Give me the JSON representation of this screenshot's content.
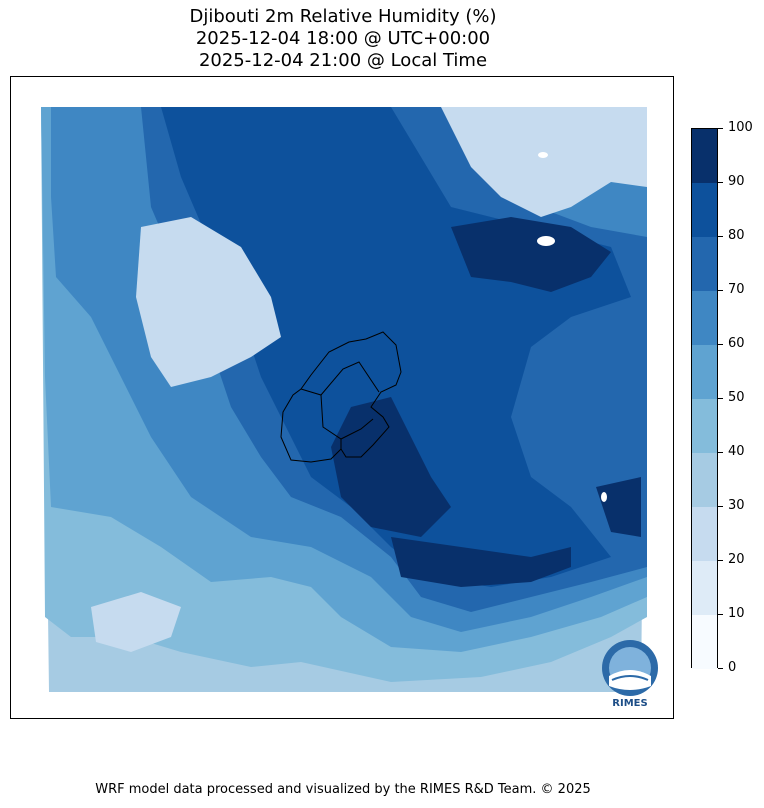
{
  "title": {
    "line1": "Djibouti 2m Relative Humidity (%)",
    "line2": "2025-12-04 18:00 @ UTC+00:00",
    "line3": "2025-12-04 21:00 @ Local Time"
  },
  "colorbar": {
    "ticks": [
      "0",
      "10",
      "20",
      "30",
      "40",
      "50",
      "60",
      "70",
      "80",
      "90",
      "100"
    ],
    "colors": [
      "#f7fbff",
      "#deebf7",
      "#c6dbef",
      "#a6cbe3",
      "#84bcdb",
      "#5fa3d1",
      "#3f87c3",
      "#2367ae",
      "#0d519c",
      "#08306b"
    ]
  },
  "logo": {
    "text": "RIMES"
  },
  "credit": "WRF model data processed and visualized by the RIMES R&D Team. © 2025"
}
